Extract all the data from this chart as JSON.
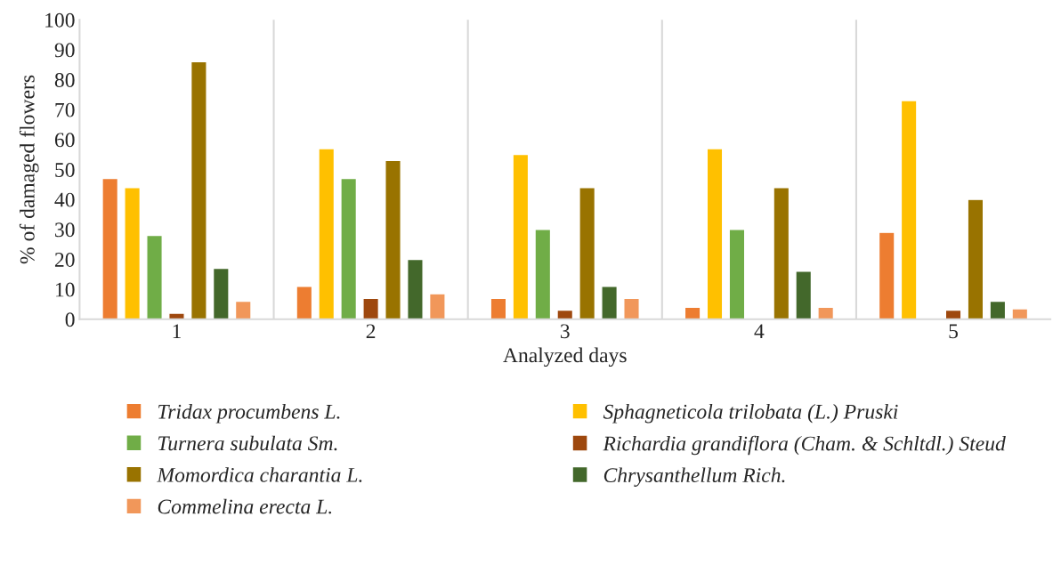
{
  "chart_data": {
    "type": "bar",
    "xlabel": "Analyzed days",
    "ylabel": "% of damaged flowers",
    "categories": [
      "1",
      "2",
      "3",
      "4",
      "5"
    ],
    "series": [
      {
        "name": "Tridax procumbens L.",
        "color": "#ed7d31",
        "values": [
          47,
          11,
          7,
          4,
          29
        ]
      },
      {
        "name": "Sphagneticola trilobata (L.) Pruski",
        "color": "#ffc000",
        "values": [
          44,
          57,
          55,
          57,
          73
        ]
      },
      {
        "name": "Turnera subulata Sm.",
        "color": "#70ad47",
        "values": [
          28,
          47,
          30,
          30,
          null
        ]
      },
      {
        "name": "Richardia grandiflora (Cham. & Schltdl.) Steud",
        "color": "#9e480e",
        "values": [
          2,
          7,
          3,
          null,
          3
        ]
      },
      {
        "name": "Momordica charantia L.",
        "color": "#997300",
        "values": [
          86,
          53,
          44,
          44,
          40
        ]
      },
      {
        "name": "Chrysanthellum Rich.",
        "color": "#43682b",
        "values": [
          17,
          20,
          11,
          16,
          6
        ]
      },
      {
        "name": "Commelina erecta L.",
        "color": "#f1975a",
        "values": [
          6,
          8.5,
          7,
          4,
          3.5
        ]
      }
    ],
    "ylim": [
      0,
      100
    ],
    "yticks": [
      0,
      10,
      20,
      30,
      40,
      50,
      60,
      70,
      80,
      90,
      100
    ],
    "grid": "x",
    "legend": "bottom"
  }
}
